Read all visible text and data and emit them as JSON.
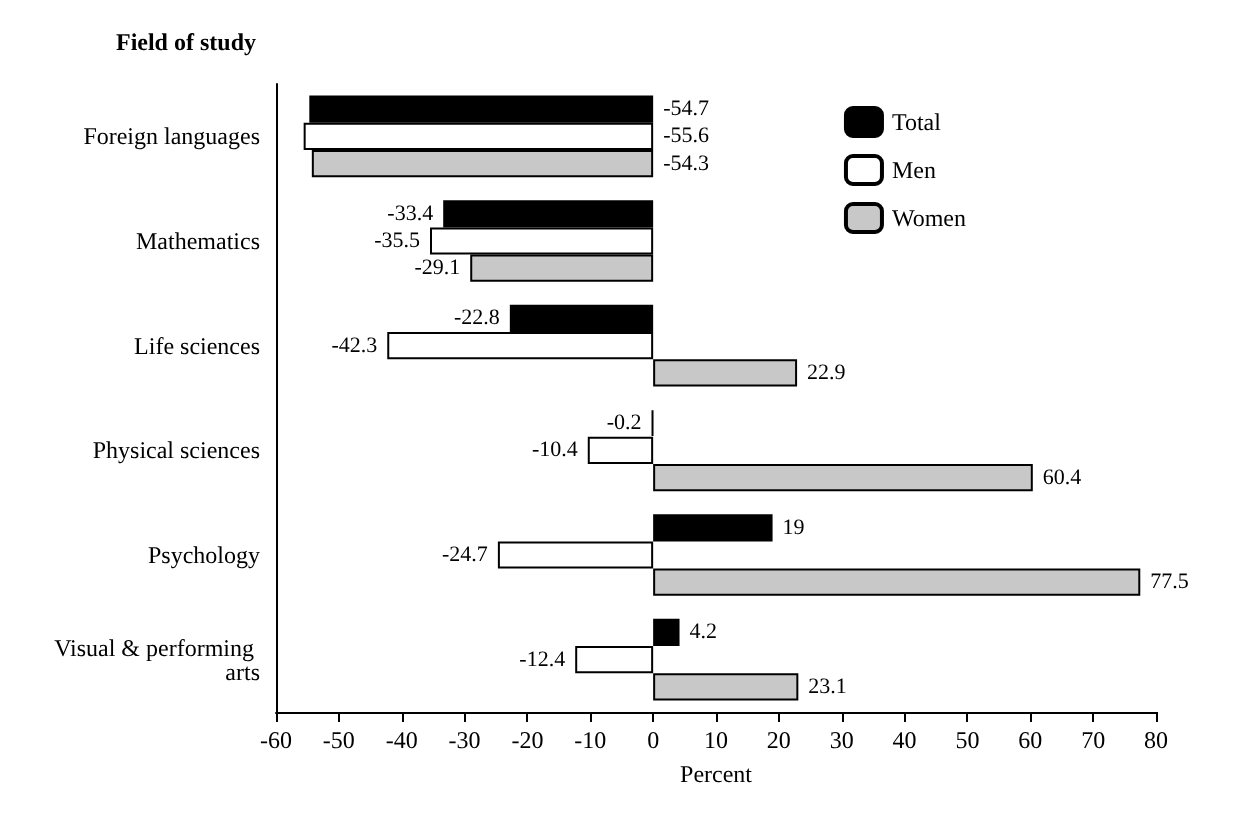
{
  "chart_data": {
    "type": "bar",
    "orientation": "horizontal",
    "xlabel": "Percent",
    "ylabel": "Field of study",
    "categories": [
      "Foreign languages",
      "Mathematics",
      "Life sciences",
      "Physical sciences",
      "Psychology",
      "Visual & performing arts"
    ],
    "series": [
      {
        "name": "Total",
        "color": "#000000",
        "values": [
          -54.7,
          -33.4,
          -22.8,
          -0.2,
          19,
          4.2
        ]
      },
      {
        "name": "Men",
        "color": "#ffffff",
        "values": [
          -55.6,
          -35.5,
          -42.3,
          -10.4,
          -24.7,
          -12.4
        ]
      },
      {
        "name": "Women",
        "color": "#c8c8c8",
        "values": [
          -54.3,
          -29.1,
          22.9,
          60.4,
          77.5,
          23.1
        ]
      }
    ],
    "xlim": [
      -60,
      80
    ],
    "xticks": [
      -60,
      -50,
      -40,
      -30,
      -20,
      -10,
      0,
      10,
      20,
      30,
      40,
      50,
      60,
      70,
      80
    ],
    "data_labels": true,
    "grid": false,
    "legend": "top right"
  }
}
